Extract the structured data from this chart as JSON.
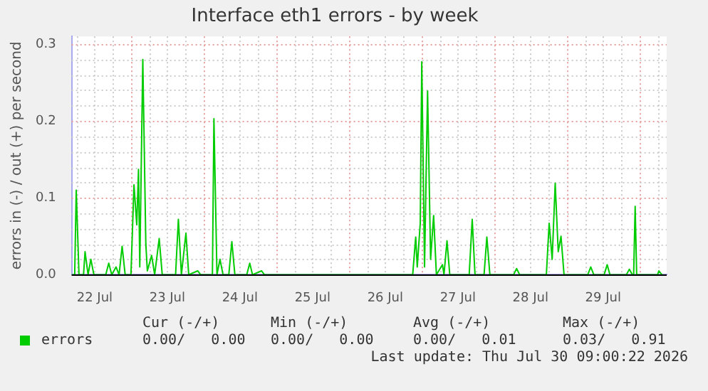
{
  "chart_data": {
    "type": "line",
    "title": "Interface eth1 errors - by week",
    "ylabel": "errors in (-) / out (+) per second",
    "xlim": [
      "2026-07-22T04:25",
      "2026-07-30T09:00"
    ],
    "xticks": [
      {
        "value": "2026-07-22T06:00",
        "label": null
      },
      {
        "value": "2026-07-22T12:00",
        "label": "22 Jul"
      },
      {
        "value": "2026-07-22T18:00",
        "label": null
      },
      {
        "value": "2026-07-23T00:00",
        "label": null
      },
      {
        "value": "2026-07-23T06:00",
        "label": null
      },
      {
        "value": "2026-07-23T12:00",
        "label": "23 Jul"
      },
      {
        "value": "2026-07-23T18:00",
        "label": null
      },
      {
        "value": "2026-07-24T00:00",
        "label": null
      },
      {
        "value": "2026-07-24T06:00",
        "label": null
      },
      {
        "value": "2026-07-24T12:00",
        "label": "24 Jul"
      },
      {
        "value": "2026-07-24T18:00",
        "label": null
      },
      {
        "value": "2026-07-25T00:00",
        "label": null
      },
      {
        "value": "2026-07-25T06:00",
        "label": null
      },
      {
        "value": "2026-07-25T12:00",
        "label": "25 Jul"
      },
      {
        "value": "2026-07-25T18:00",
        "label": null
      },
      {
        "value": "2026-07-26T00:00",
        "label": null
      },
      {
        "value": "2026-07-26T06:00",
        "label": null
      },
      {
        "value": "2026-07-26T12:00",
        "label": "26 Jul"
      },
      {
        "value": "2026-07-26T18:00",
        "label": null
      },
      {
        "value": "2026-07-27T00:00",
        "label": null
      },
      {
        "value": "2026-07-27T06:00",
        "label": null
      },
      {
        "value": "2026-07-27T12:00",
        "label": "27 Jul"
      },
      {
        "value": "2026-07-27T18:00",
        "label": null
      },
      {
        "value": "2026-07-28T00:00",
        "label": null
      },
      {
        "value": "2026-07-28T06:00",
        "label": null
      },
      {
        "value": "2026-07-28T12:00",
        "label": "28 Jul"
      },
      {
        "value": "2026-07-28T18:00",
        "label": null
      },
      {
        "value": "2026-07-29T00:00",
        "label": null
      },
      {
        "value": "2026-07-29T06:00",
        "label": null
      },
      {
        "value": "2026-07-29T12:00",
        "label": "29 Jul"
      },
      {
        "value": "2026-07-29T18:00",
        "label": null
      },
      {
        "value": "2026-07-30T00:00",
        "label": null
      },
      {
        "value": "2026-07-30T06:00",
        "label": null
      }
    ],
    "ylim": [
      0,
      0.31
    ],
    "yticks": [
      {
        "value": 0,
        "label": "0.0"
      },
      {
        "value": 0.02,
        "label": null
      },
      {
        "value": 0.04,
        "label": null
      },
      {
        "value": 0.06,
        "label": null
      },
      {
        "value": 0.08,
        "label": null
      },
      {
        "value": 0.1,
        "label": "0.1"
      },
      {
        "value": 0.12,
        "label": null
      },
      {
        "value": 0.14,
        "label": null
      },
      {
        "value": 0.16,
        "label": null
      },
      {
        "value": 0.18,
        "label": null
      },
      {
        "value": 0.2,
        "label": "0.2"
      },
      {
        "value": 0.22,
        "label": null
      },
      {
        "value": 0.24,
        "label": null
      },
      {
        "value": 0.26,
        "label": null
      },
      {
        "value": 0.28,
        "label": null
      },
      {
        "value": 0.3,
        "label": "0.3"
      }
    ],
    "grid": true,
    "legend": "bottom",
    "marker": "none",
    "line_style": "solid",
    "x": [
      "2026-07-22T04:25",
      "2026-07-22T05:25",
      "2026-07-22T05:55",
      "2026-07-22T06:50",
      "2026-07-22T08:20",
      "2026-07-22T08:50",
      "2026-07-22T09:50",
      "2026-07-22T10:45",
      "2026-07-22T11:45",
      "2026-07-22T15:40",
      "2026-07-22T16:40",
      "2026-07-22T17:40",
      "2026-07-22T19:05",
      "2026-07-22T20:05",
      "2026-07-22T21:05",
      "2026-07-22T22:05",
      "2026-07-23T00:00",
      "2026-07-23T01:00",
      "2026-07-23T01:55",
      "2026-07-23T02:30",
      "2026-07-23T02:55",
      "2026-07-23T03:55",
      "2026-07-23T04:55",
      "2026-07-23T05:25",
      "2026-07-23T06:50",
      "2026-07-23T07:50",
      "2026-07-23T09:20",
      "2026-07-23T10:20",
      "2026-07-23T14:45",
      "2026-07-23T15:40",
      "2026-07-23T16:40",
      "2026-07-23T18:10",
      "2026-07-23T19:05",
      "2026-07-23T22:05",
      "2026-07-23T23:00",
      "2026-07-24T02:55",
      "2026-07-24T03:25",
      "2026-07-24T04:25",
      "2026-07-24T05:25",
      "2026-07-24T06:25",
      "2026-07-24T08:20",
      "2026-07-24T09:20",
      "2026-07-24T10:20",
      "2026-07-24T14:15",
      "2026-07-24T15:15",
      "2026-07-24T16:10",
      "2026-07-24T19:10",
      "2026-07-24T20:05",
      "2026-07-26T21:05",
      "2026-07-26T22:05",
      "2026-07-26T22:35",
      "2026-07-26T23:35",
      "2026-07-27T00:05",
      "2026-07-27T01:00",
      "2026-07-27T02:00",
      "2026-07-27T03:00",
      "2026-07-27T04:00",
      "2026-07-27T04:55",
      "2026-07-27T06:55",
      "2026-07-27T07:25",
      "2026-07-27T08:25",
      "2026-07-27T09:20",
      "2026-07-27T15:45",
      "2026-07-27T16:45",
      "2026-07-27T17:40",
      "2026-07-27T20:40",
      "2026-07-27T21:35",
      "2026-07-27T22:35",
      "2026-07-28T06:25",
      "2026-07-28T07:25",
      "2026-07-28T08:25",
      "2026-07-28T17:15",
      "2026-07-28T18:10",
      "2026-07-28T19:10",
      "2026-07-28T20:10",
      "2026-07-28T21:10",
      "2026-07-28T22:05",
      "2026-07-28T23:05",
      "2026-07-29T06:55",
      "2026-07-29T07:55",
      "2026-07-29T08:55",
      "2026-07-29T12:20",
      "2026-07-29T13:20",
      "2026-07-29T14:15",
      "2026-07-29T19:40",
      "2026-07-29T20:40",
      "2026-07-29T21:40",
      "2026-07-29T22:05",
      "2026-07-29T22:35",
      "2026-07-29T23:05",
      "2026-07-30T06:00",
      "2026-07-30T06:25",
      "2026-07-30T07:25"
    ],
    "series": [
      {
        "name": "errors",
        "color": "#00cc00",
        "values": [
          0,
          0,
          0.11,
          0,
          0,
          0.03,
          0,
          0.02,
          0,
          0,
          0.015,
          0,
          0.01,
          0,
          0.037,
          0,
          0,
          0.117,
          0.065,
          0.137,
          0.01,
          0.28,
          0.04,
          0.005,
          0.025,
          0,
          0.047,
          0,
          0,
          0.072,
          0,
          0.054,
          0,
          0.005,
          0,
          0,
          0.203,
          0,
          0.02,
          0,
          0,
          0.043,
          0,
          0,
          0.015,
          0,
          0.005,
          0,
          0,
          0.049,
          0.01,
          0.067,
          0.277,
          0.01,
          0.239,
          0.02,
          0.077,
          0,
          0.013,
          0,
          0.044,
          0,
          0,
          0.072,
          0,
          0,
          0.049,
          0,
          0,
          0.008,
          0,
          0,
          0.067,
          0.02,
          0.119,
          0.03,
          0.05,
          0,
          0,
          0.01,
          0,
          0,
          0.013,
          0,
          0,
          0.007,
          0,
          0,
          0.089,
          0,
          0,
          0.005,
          0
        ]
      }
    ],
    "annotations": [
      "Cur (-/+)",
      "Min (-/+)",
      "Avg (-/+)",
      "Max (-/+)",
      "0.00/   0.00",
      "0.00/   0.00",
      "0.00/   0.01",
      "0.03/   0.91",
      "Last update: Thu Jul 30 09:00:22 2026"
    ]
  }
}
